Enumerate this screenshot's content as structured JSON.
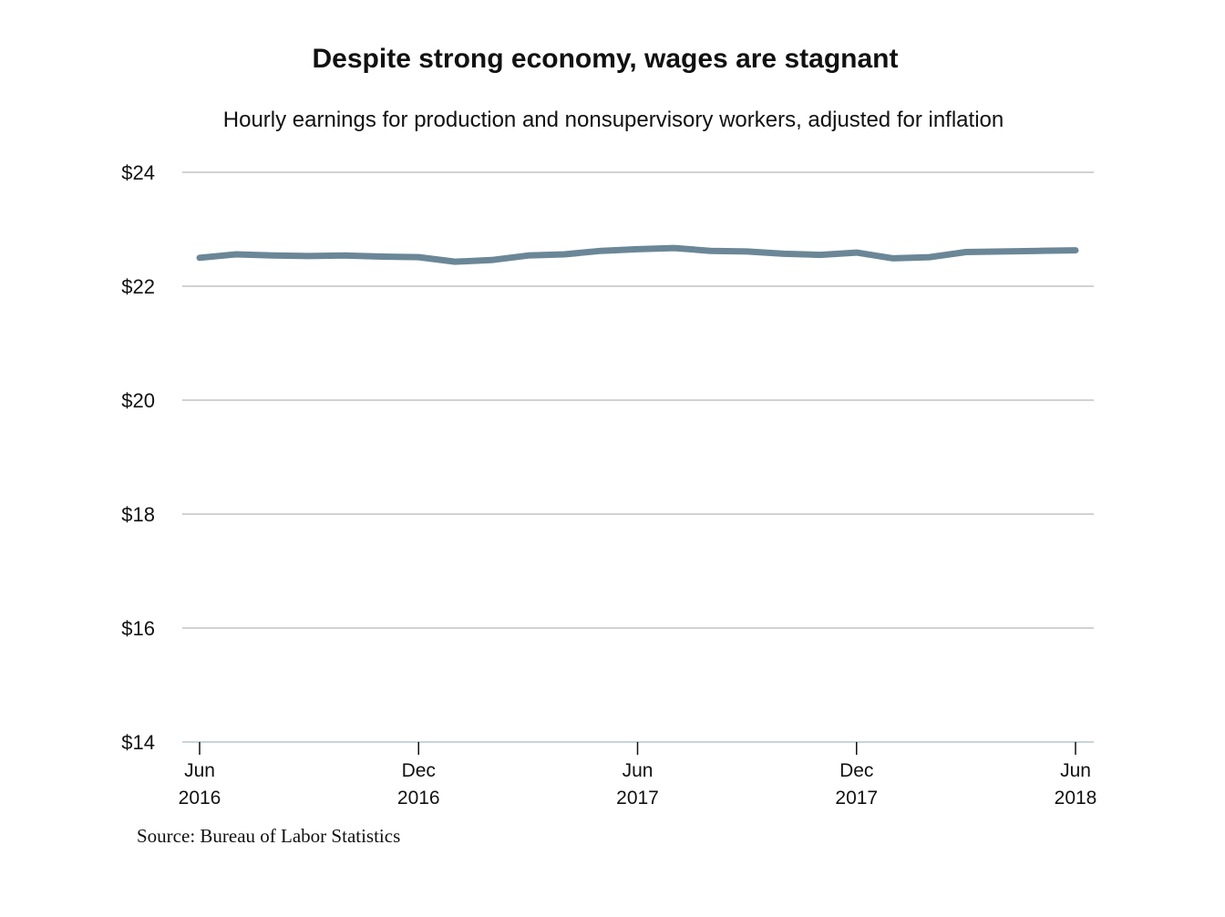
{
  "chart_data": {
    "type": "line",
    "title": "Despite strong economy, wages are stagnant",
    "subtitle": "Hourly earnings for production and nonsupervisory workers, adjusted for inflation",
    "source": "Source: Bureau of Labor Statistics",
    "ylim": [
      14,
      24
    ],
    "y_ticks": [
      {
        "value": 24,
        "label": "$24"
      },
      {
        "value": 22,
        "label": "$22"
      },
      {
        "value": 20,
        "label": "$20"
      },
      {
        "value": 18,
        "label": "$18"
      },
      {
        "value": 16,
        "label": "$16"
      },
      {
        "value": 14,
        "label": "$14"
      }
    ],
    "x_ticks": [
      {
        "date": "2016-06",
        "month": "Jun",
        "year": "2016"
      },
      {
        "date": "2016-12",
        "month": "Dec",
        "year": "2016"
      },
      {
        "date": "2017-06",
        "month": "Jun",
        "year": "2017"
      },
      {
        "date": "2017-12",
        "month": "Dec",
        "year": "2017"
      },
      {
        "date": "2018-06",
        "month": "Jun",
        "year": "2018"
      }
    ],
    "grid": true,
    "series": [
      {
        "color": "#6b8797",
        "points": [
          {
            "x": "2016-06",
            "y": 22.5
          },
          {
            "x": "2016-07",
            "y": 22.56
          },
          {
            "x": "2016-08",
            "y": 22.54
          },
          {
            "x": "2016-09",
            "y": 22.53
          },
          {
            "x": "2016-10",
            "y": 22.54
          },
          {
            "x": "2016-11",
            "y": 22.52
          },
          {
            "x": "2016-12",
            "y": 22.51
          },
          {
            "x": "2017-01",
            "y": 22.43
          },
          {
            "x": "2017-02",
            "y": 22.46
          },
          {
            "x": "2017-03",
            "y": 22.54
          },
          {
            "x": "2017-04",
            "y": 22.56
          },
          {
            "x": "2017-05",
            "y": 22.62
          },
          {
            "x": "2017-06",
            "y": 22.65
          },
          {
            "x": "2017-07",
            "y": 22.67
          },
          {
            "x": "2017-08",
            "y": 22.62
          },
          {
            "x": "2017-09",
            "y": 22.61
          },
          {
            "x": "2017-10",
            "y": 22.57
          },
          {
            "x": "2017-11",
            "y": 22.55
          },
          {
            "x": "2017-12",
            "y": 22.59
          },
          {
            "x": "2018-01",
            "y": 22.49
          },
          {
            "x": "2018-02",
            "y": 22.51
          },
          {
            "x": "2018-03",
            "y": 22.6
          },
          {
            "x": "2018-04",
            "y": 22.61
          },
          {
            "x": "2018-05",
            "y": 22.62
          },
          {
            "x": "2018-06",
            "y": 22.63
          }
        ]
      }
    ]
  }
}
